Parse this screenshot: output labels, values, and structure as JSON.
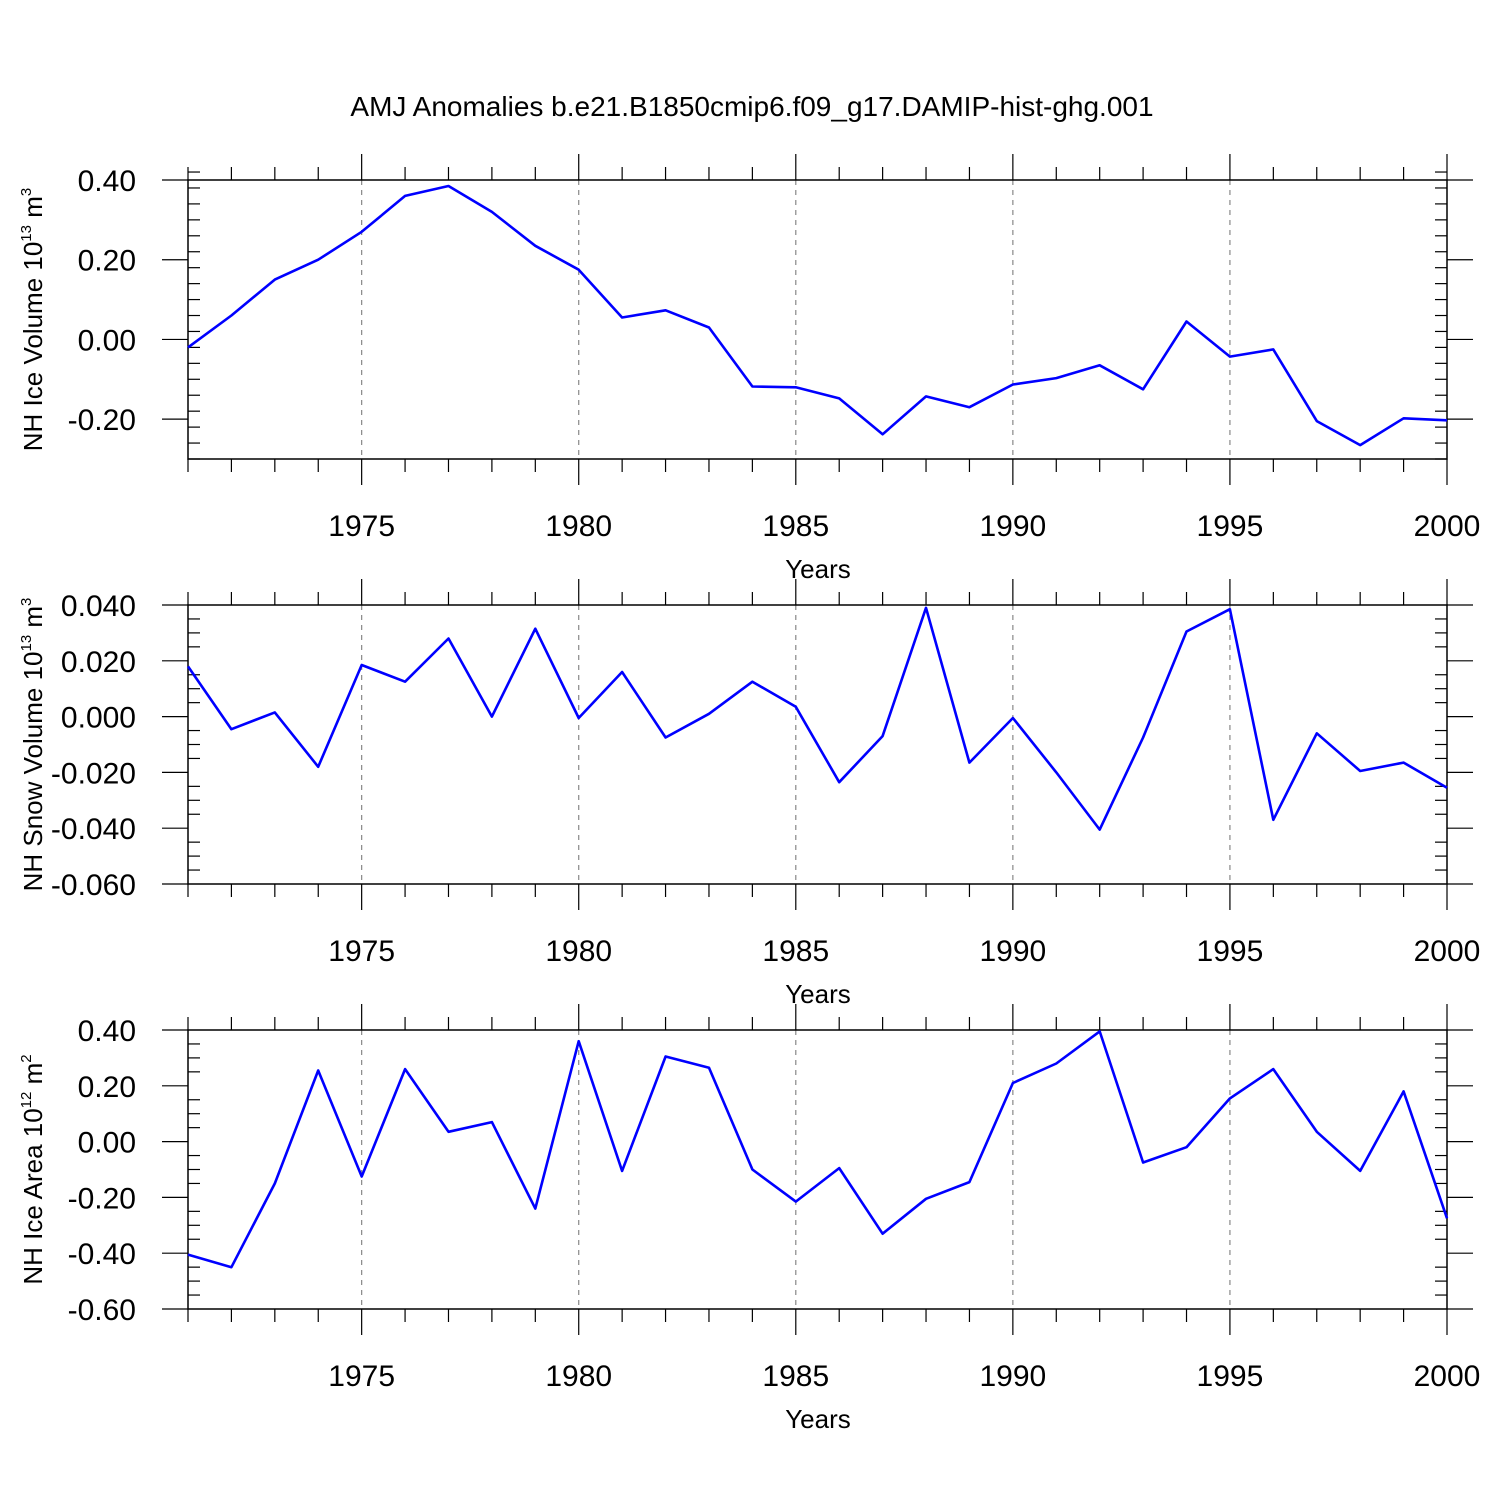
{
  "figure": {
    "title": "AMJ Anomalies b.e21.B1850cmip6.f09_g17.DAMIP-hist-ghg.001",
    "line_color": "#0000ff",
    "grid_color": "#888888"
  },
  "chart_data": [
    {
      "type": "line",
      "title": "",
      "xlabel": "Years",
      "ylabel": {
        "text": "NH Ice Volume 10",
        "sup1": "13",
        "mid": " m",
        "sup2": "3"
      },
      "x": [
        1971,
        1972,
        1973,
        1974,
        1975,
        1976,
        1977,
        1978,
        1979,
        1980,
        1981,
        1982,
        1983,
        1984,
        1985,
        1986,
        1987,
        1988,
        1989,
        1990,
        1991,
        1992,
        1993,
        1994,
        1995,
        1996,
        1997,
        1998,
        1999,
        2000
      ],
      "series": [
        {
          "name": "NH Ice Volume",
          "values": [
            -0.02,
            0.06,
            0.15,
            0.2,
            0.27,
            0.36,
            0.385,
            0.32,
            0.235,
            0.175,
            0.055,
            0.073,
            0.03,
            -0.118,
            -0.12,
            -0.148,
            -0.238,
            -0.143,
            -0.17,
            -0.113,
            -0.097,
            -0.065,
            -0.125,
            0.045,
            -0.043,
            -0.025,
            -0.205,
            -0.265,
            -0.198,
            -0.203
          ]
        }
      ],
      "xlim": [
        1971,
        2000
      ],
      "ylim": [
        -0.3,
        0.4
      ],
      "yticks": [
        0.4,
        0.2,
        0.0,
        -0.2
      ],
      "ytick_labels": [
        "0.40",
        "0.20",
        "0.00",
        "-0.20"
      ],
      "yminor_step": 0.04,
      "xticks": [
        1975,
        1980,
        1985,
        1990,
        1995,
        2000
      ],
      "xtick_labels": [
        "1975",
        "1980",
        "1985",
        "1990",
        "1995",
        "2000"
      ],
      "grid": "vertical-dashed"
    },
    {
      "type": "line",
      "title": "",
      "xlabel": "Years",
      "ylabel": {
        "text": "NH Snow Volume 10",
        "sup1": "13",
        "mid": " m",
        "sup2": "3"
      },
      "x": [
        1971,
        1972,
        1973,
        1974,
        1975,
        1976,
        1977,
        1978,
        1979,
        1980,
        1981,
        1982,
        1983,
        1984,
        1985,
        1986,
        1987,
        1988,
        1989,
        1990,
        1991,
        1992,
        1993,
        1994,
        1995,
        1996,
        1997,
        1998,
        1999,
        2000
      ],
      "series": [
        {
          "name": "NH Snow Volume",
          "values": [
            0.018,
            -0.0045,
            0.0015,
            -0.018,
            0.0185,
            0.0125,
            0.028,
            0.0,
            0.0315,
            -0.0005,
            0.016,
            -0.0075,
            0.001,
            0.0125,
            0.0035,
            -0.0235,
            -0.007,
            0.039,
            -0.0165,
            -0.0005,
            -0.02,
            -0.0405,
            -0.0075,
            0.0305,
            0.0385,
            -0.037,
            -0.006,
            -0.0195,
            -0.0165,
            -0.0255
          ]
        }
      ],
      "xlim": [
        1971,
        2000
      ],
      "ylim": [
        -0.06,
        0.04
      ],
      "yticks": [
        0.04,
        0.02,
        0.0,
        -0.02,
        -0.04,
        -0.06
      ],
      "ytick_labels": [
        "0.040",
        "0.020",
        "0.000",
        "-0.020",
        "-0.040",
        "-0.060"
      ],
      "yminor_step": 0.005,
      "xticks": [
        1975,
        1980,
        1985,
        1990,
        1995,
        2000
      ],
      "xtick_labels": [
        "1975",
        "1980",
        "1985",
        "1990",
        "1995",
        "2000"
      ],
      "grid": "vertical-dashed"
    },
    {
      "type": "line",
      "title": "",
      "xlabel": "Years",
      "ylabel": {
        "text": "NH Ice Area 10",
        "sup1": "12",
        "mid": " m",
        "sup2": "2"
      },
      "x": [
        1971,
        1972,
        1973,
        1974,
        1975,
        1976,
        1977,
        1978,
        1979,
        1980,
        1981,
        1982,
        1983,
        1984,
        1985,
        1986,
        1987,
        1988,
        1989,
        1990,
        1991,
        1992,
        1993,
        1994,
        1995,
        1996,
        1997,
        1998,
        1999,
        2000
      ],
      "series": [
        {
          "name": "NH Ice Area",
          "values": [
            -0.405,
            -0.45,
            -0.15,
            0.255,
            -0.125,
            0.26,
            0.035,
            0.07,
            -0.24,
            0.36,
            -0.105,
            0.305,
            0.265,
            -0.1,
            -0.215,
            -0.095,
            -0.33,
            -0.205,
            -0.145,
            0.21,
            0.28,
            0.395,
            -0.075,
            -0.02,
            0.155,
            0.26,
            0.035,
            -0.105,
            0.18,
            -0.275
          ]
        }
      ],
      "xlim": [
        1971,
        2000
      ],
      "ylim": [
        -0.6,
        0.4
      ],
      "yticks": [
        0.4,
        0.2,
        0.0,
        -0.2,
        -0.4,
        -0.6
      ],
      "ytick_labels": [
        "0.40",
        "0.20",
        "0.00",
        "-0.20",
        "-0.40",
        "-0.60"
      ],
      "yminor_step": 0.05,
      "xticks": [
        1975,
        1980,
        1985,
        1990,
        1995,
        2000
      ],
      "xtick_labels": [
        "1975",
        "1980",
        "1985",
        "1990",
        "1995",
        "2000"
      ],
      "grid": "vertical-dashed"
    }
  ]
}
